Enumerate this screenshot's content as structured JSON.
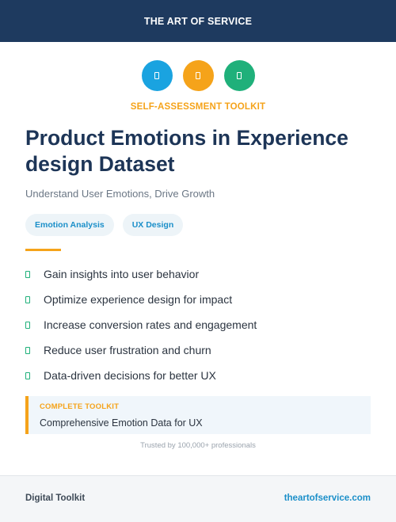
{
  "header": {
    "brand": "THE ART OF SERVICE"
  },
  "icons": [
    {
      "name": "icon-blue",
      "color": "#1aa3e0"
    },
    {
      "name": "icon-orange",
      "color": "#f5a31a"
    },
    {
      "name": "icon-green",
      "color": "#1fb07a"
    }
  ],
  "kicker": {
    "text": "SELF-ASSESSMENT TOOLKIT",
    "color": "#f5a31a"
  },
  "title": "Product Emotions in Experience design Dataset",
  "subtitle": "Understand User Emotions, Drive Growth",
  "tags": [
    {
      "label": "Emotion Analysis"
    },
    {
      "label": "UX Design"
    }
  ],
  "tag_color": "#1b8fc9",
  "accent_color": "#f5a31a",
  "features": [
    {
      "text": "Gain insights into user behavior"
    },
    {
      "text": "Optimize experience design for impact"
    },
    {
      "text": "Increase conversion rates and engagement"
    },
    {
      "text": "Reduce user frustration and churn"
    },
    {
      "text": "Data-driven decisions for better UX"
    }
  ],
  "callout": {
    "label": "COMPLETE TOOLKIT",
    "text": "Comprehensive Emotion Data for UX"
  },
  "trusted": "Trusted by 100,000+ professionals",
  "footer": {
    "left": "Digital Toolkit",
    "right": "theartofservice.com",
    "link_color": "#1b8fc9"
  }
}
